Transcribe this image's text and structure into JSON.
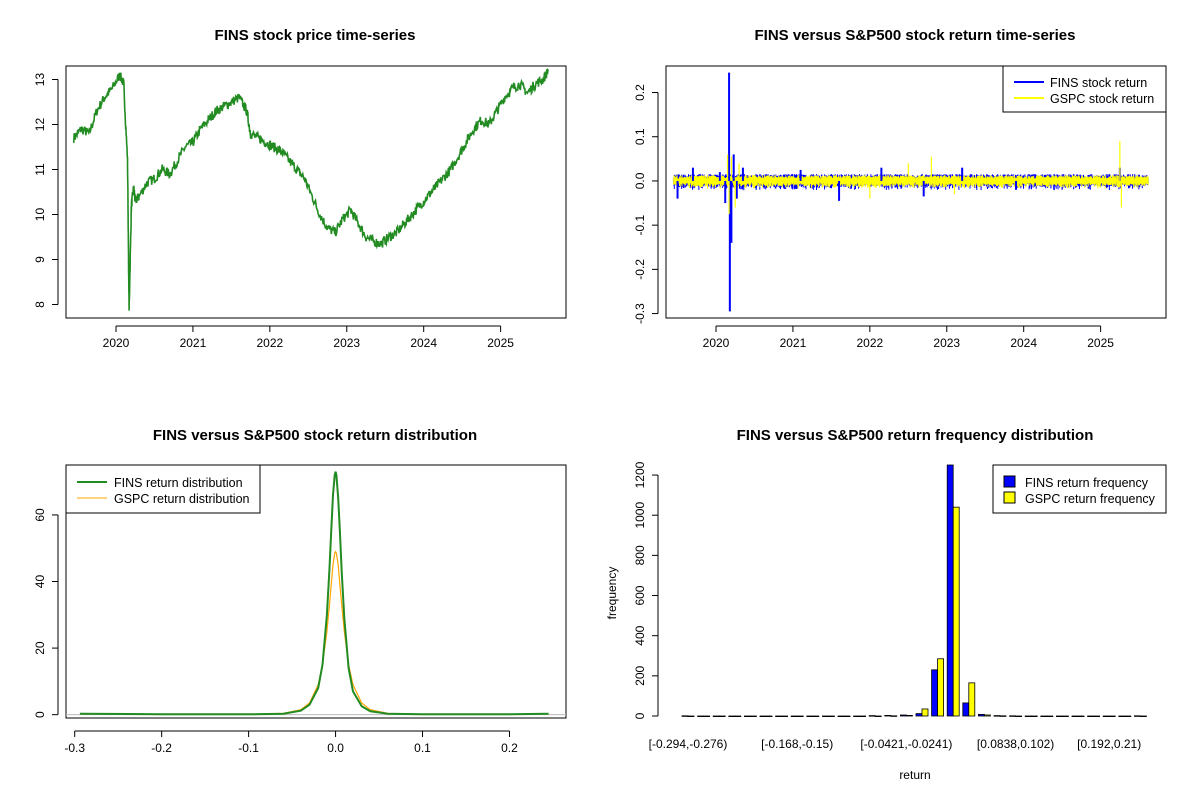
{
  "colors": {
    "price_line": "#228B22",
    "fins": "#0000FF",
    "gspc": "#FFFF00",
    "fins_density": "#228B22",
    "gspc_density": "#FFA500"
  },
  "chart_data": [
    {
      "type": "line",
      "title": "FINS stock price time-series",
      "xlabel": "",
      "ylabel": "",
      "x_ticks": [
        "2020",
        "2021",
        "2022",
        "2023",
        "2024",
        "2025"
      ],
      "y_ticks": [
        "8",
        "9",
        "10",
        "11",
        "12",
        "13"
      ],
      "xlim": [
        2019.35,
        2025.85
      ],
      "ylim": [
        7.7,
        13.3
      ],
      "series": [
        {
          "x": [
            2019.45,
            2019.55,
            2019.65,
            2019.75,
            2019.85,
            2019.95,
            2020.05,
            2020.1,
            2020.15,
            2020.17,
            2020.2,
            2020.23,
            2020.25,
            2020.3,
            2020.4,
            2020.5,
            2020.6,
            2020.7,
            2020.8,
            2020.9,
            2021.0,
            2021.1,
            2021.2,
            2021.3,
            2021.4,
            2021.5,
            2021.6,
            2021.7,
            2021.75,
            2021.85,
            2021.95,
            2022.05,
            2022.15,
            2022.25,
            2022.35,
            2022.45,
            2022.55,
            2022.65,
            2022.75,
            2022.85,
            2022.95,
            2023.05,
            2023.15,
            2023.25,
            2023.35,
            2023.45,
            2023.55,
            2023.65,
            2023.75,
            2023.85,
            2023.95,
            2024.05,
            2024.15,
            2024.25,
            2024.35,
            2024.45,
            2024.55,
            2024.65,
            2024.75,
            2024.85,
            2024.95,
            2025.05,
            2025.15,
            2025.25,
            2025.35,
            2025.45,
            2025.55,
            2025.62
          ],
          "y": [
            11.7,
            11.9,
            11.8,
            12.3,
            12.6,
            12.8,
            13.1,
            12.9,
            11.2,
            7.85,
            10.2,
            10.6,
            10.3,
            10.4,
            10.7,
            10.8,
            11.0,
            10.9,
            11.2,
            11.5,
            11.6,
            11.9,
            12.1,
            12.3,
            12.4,
            12.5,
            12.6,
            12.3,
            11.8,
            11.7,
            11.6,
            11.5,
            11.4,
            11.2,
            11.0,
            10.8,
            10.4,
            10.0,
            9.7,
            9.6,
            9.9,
            10.1,
            9.8,
            9.5,
            9.4,
            9.35,
            9.5,
            9.6,
            9.8,
            10.0,
            10.2,
            10.4,
            10.6,
            10.8,
            11.0,
            11.3,
            11.6,
            11.9,
            12.1,
            12.0,
            12.3,
            12.6,
            12.8,
            12.9,
            12.7,
            12.9,
            13.0,
            13.2
          ]
        }
      ]
    },
    {
      "type": "line",
      "title": "FINS versus S&P500 stock return time-series",
      "xlabel": "",
      "ylabel": "",
      "x_ticks": [
        "2020",
        "2021",
        "2022",
        "2023",
        "2024",
        "2025"
      ],
      "y_ticks": [
        "-0.3",
        "-0.2",
        "-0.1",
        "0.0",
        "0.1",
        "0.2"
      ],
      "xlim": [
        2019.35,
        2025.85
      ],
      "ylim": [
        -0.31,
        0.26
      ],
      "legend": [
        "FINS stock return",
        "GSPC stock return"
      ],
      "legend_position": "top-right",
      "series": [
        {
          "name": "FINS stock return",
          "spikes": [
            [
              2020.05,
              0.02
            ],
            [
              2020.12,
              -0.05
            ],
            [
              2020.17,
              0.245
            ],
            [
              2020.18,
              -0.295
            ],
            [
              2020.2,
              -0.14
            ],
            [
              2020.23,
              0.06
            ],
            [
              2020.27,
              -0.04
            ],
            [
              2020.35,
              0.03
            ],
            [
              2019.5,
              -0.04
            ],
            [
              2019.7,
              0.03
            ],
            [
              2021.1,
              0.025
            ],
            [
              2021.6,
              -0.045
            ],
            [
              2022.15,
              0.03
            ],
            [
              2022.7,
              -0.035
            ],
            [
              2023.2,
              0.03
            ],
            [
              2023.9,
              -0.02
            ],
            [
              2025.25,
              0.03
            ]
          ]
        },
        {
          "name": "GSPC stock return",
          "spikes": [
            [
              2020.15,
              0.06
            ],
            [
              2020.17,
              -0.075
            ],
            [
              2020.2,
              0.055
            ],
            [
              2020.25,
              -0.06
            ],
            [
              2020.3,
              0.04
            ],
            [
              2022.0,
              -0.04
            ],
            [
              2022.5,
              0.04
            ],
            [
              2022.8,
              0.055
            ],
            [
              2023.1,
              -0.03
            ],
            [
              2025.25,
              0.09
            ],
            [
              2025.27,
              -0.06
            ]
          ]
        }
      ]
    },
    {
      "type": "line",
      "title": "FINS versus S&P500 stock return distribution",
      "xlabel": "",
      "ylabel": "",
      "x_ticks": [
        "-0.3",
        "-0.2",
        "-0.1",
        "0.0",
        "0.1",
        "0.2"
      ],
      "y_ticks": [
        "0",
        "20",
        "40",
        "60"
      ],
      "xlim": [
        -0.31,
        0.265
      ],
      "ylim": [
        -1,
        75
      ],
      "legend": [
        "FINS return distribution",
        "GSPC return distribution"
      ],
      "legend_position": "top-left",
      "series": [
        {
          "name": "FINS return distribution",
          "x": [
            -0.294,
            -0.2,
            -0.1,
            -0.06,
            -0.04,
            -0.03,
            -0.02,
            -0.015,
            -0.01,
            -0.007,
            -0.005,
            -0.003,
            -0.001,
            0.0,
            0.001,
            0.003,
            0.005,
            0.007,
            0.01,
            0.015,
            0.02,
            0.03,
            0.04,
            0.06,
            0.1,
            0.2,
            0.245
          ],
          "y": [
            0.3,
            0.1,
            0.1,
            0.3,
            1.2,
            3.0,
            8.0,
            15.0,
            30.0,
            44.0,
            55.0,
            66.0,
            72.0,
            73.0,
            72.0,
            65.0,
            55.0,
            43.0,
            29.0,
            14.0,
            7.0,
            2.5,
            1.0,
            0.3,
            0.1,
            0.1,
            0.3
          ]
        },
        {
          "name": "GSPC return distribution",
          "x": [
            -0.1,
            -0.06,
            -0.04,
            -0.03,
            -0.02,
            -0.015,
            -0.01,
            -0.007,
            -0.005,
            -0.003,
            -0.001,
            0.0,
            0.001,
            0.003,
            0.005,
            0.007,
            0.01,
            0.015,
            0.02,
            0.03,
            0.04,
            0.06,
            0.1
          ],
          "y": [
            0.1,
            0.4,
            1.5,
            3.5,
            9.0,
            15.0,
            25.0,
            33.0,
            39.0,
            45.0,
            48.5,
            49.0,
            48.5,
            45.0,
            39.0,
            33.0,
            25.0,
            15.0,
            9.0,
            3.5,
            1.5,
            0.4,
            0.1
          ]
        }
      ]
    },
    {
      "type": "bar",
      "title": "FINS versus S&P500 return frequency distribution",
      "xlabel": "return",
      "ylabel": "frequency",
      "x_tick_labels": [
        "[-0.294,-0.276)",
        "[-0.168,-0.15)",
        "[-0.0421,-0.0241)",
        "[0.0838,0.102)",
        "[0.192,0.21)"
      ],
      "x_tick_bins": [
        0,
        7,
        14,
        21,
        27
      ],
      "y_ticks": [
        "0",
        "200",
        "400",
        "600",
        "800",
        "1000",
        "1200"
      ],
      "ylim": [
        0,
        1250
      ],
      "legend": [
        "FINS return frequency",
        "GSPC return frequency"
      ],
      "legend_position": "top-right",
      "bins": 30,
      "series": [
        {
          "name": "FINS return frequency",
          "values": [
            1,
            0,
            0,
            0,
            0,
            0,
            0,
            0,
            0,
            0,
            0,
            0,
            2,
            3,
            5,
            12,
            230,
            1250,
            65,
            8,
            2,
            1,
            0,
            0,
            0,
            0,
            0,
            0,
            0,
            1
          ]
        },
        {
          "name": "GSPC return frequency",
          "values": [
            0,
            0,
            0,
            0,
            0,
            0,
            0,
            0,
            0,
            0,
            0,
            0,
            0,
            1,
            3,
            35,
            285,
            1040,
            165,
            5,
            1,
            0,
            0,
            0,
            0,
            0,
            0,
            0,
            0,
            0
          ]
        }
      ]
    }
  ]
}
